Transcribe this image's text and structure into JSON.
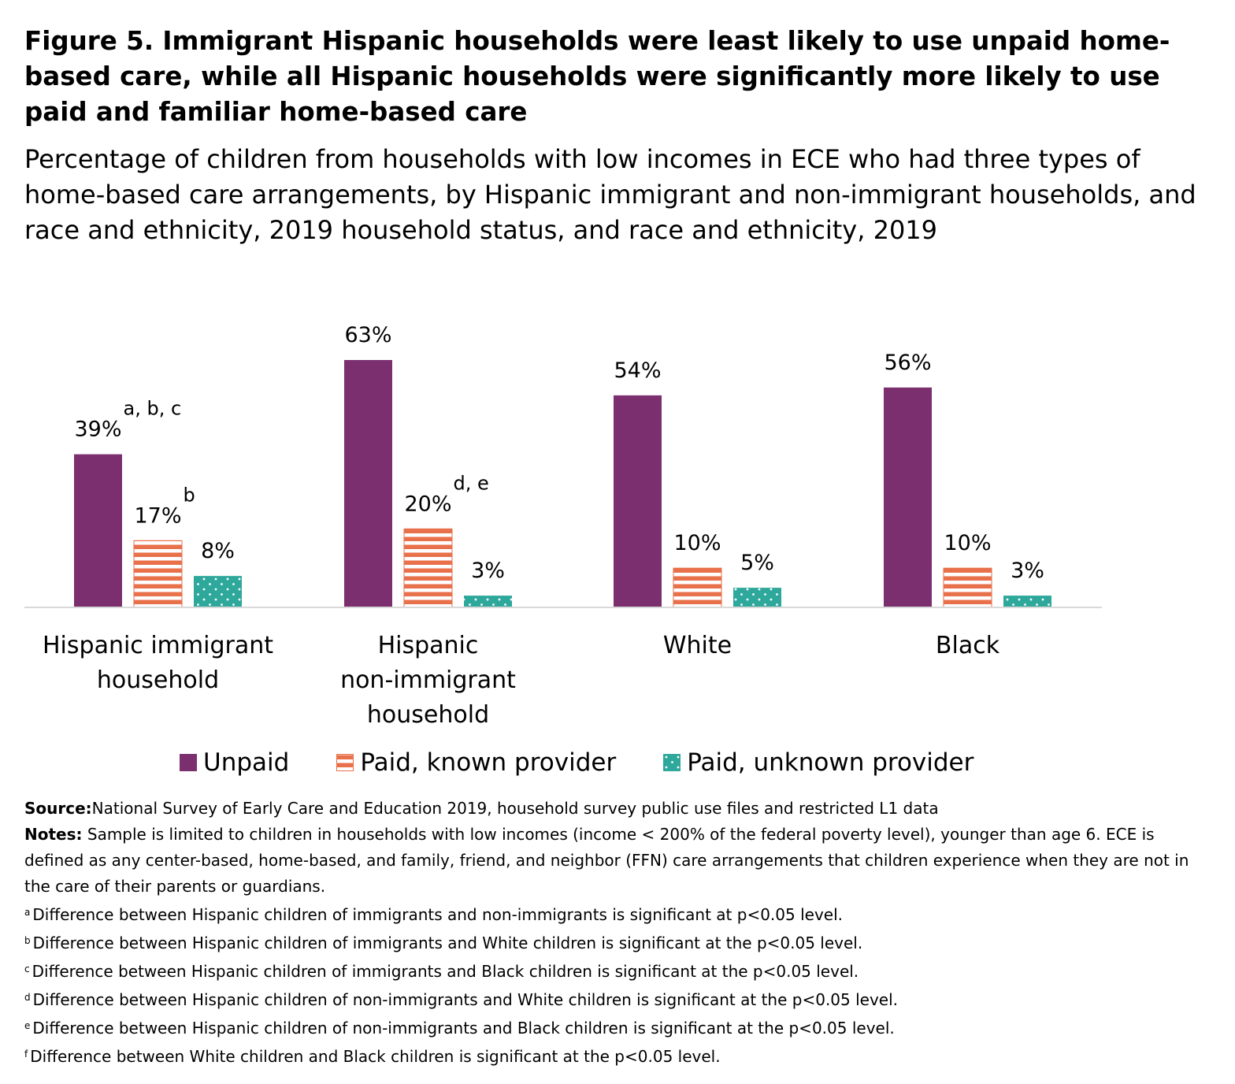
{
  "title": "Figure 5. Immigrant Hispanic households were least likely to use unpaid home-based care, while all Hispanic households were significantly more likely to use paid and familiar home-based care",
  "subtitle": "Percentage of children from households with low incomes in ECE who had three types of home-based care arrangements, by Hispanic immigrant and non-immigrant households, and race and ethnicity, 2019 household status, and race and ethnicity, 2019",
  "colors": {
    "unpaid": "#7b2f6e",
    "paid_known": "#e8704a",
    "paid_unknown": "#2fa89c",
    "axis": "#d9d9d9"
  },
  "chart_data": {
    "type": "bar",
    "categories": [
      [
        "Hispanic immigrant",
        "household"
      ],
      [
        "Hispanic",
        "non-immigrant",
        "household"
      ],
      [
        "White"
      ],
      [
        "Black"
      ]
    ],
    "series": [
      {
        "name": "Unpaid",
        "values": [
          39,
          63,
          54,
          56
        ],
        "labels": [
          "39%",
          "63%",
          "54%",
          "56%"
        ],
        "superscripts": [
          "a, b, c",
          "",
          "",
          ""
        ],
        "pattern": "solid"
      },
      {
        "name": "Paid, known provider",
        "values": [
          17,
          20,
          10,
          10
        ],
        "labels": [
          "17%",
          "20%",
          "10%",
          "10%"
        ],
        "superscripts": [
          "b",
          "d, e",
          "",
          ""
        ],
        "pattern": "stripes"
      },
      {
        "name": "Paid, unknown provider",
        "values": [
          8,
          3,
          5,
          3
        ],
        "labels": [
          "8%",
          "3%",
          "5%",
          "3%"
        ],
        "superscripts": [
          "",
          "",
          "",
          ""
        ],
        "pattern": "dots"
      }
    ],
    "ylim": [
      0,
      70
    ],
    "legend_position": "bottom",
    "grid": false
  },
  "footer": {
    "source_label": "Source:",
    "source_text": "National Survey of Early Care and Education 2019, household survey public use files and restricted L1 data",
    "notes_label": "Notes:",
    "notes_text": " Sample is limited to children in households with low incomes (income < 200% of the federal poverty level), younger than age 6. ECE is defined as any center-based, home-based, and family, friend, and neighbor (FFN) care arrangements that children experience when they are not in the care of their parents or guardians.",
    "footnotes": [
      {
        "mark": "a",
        "text": "Difference between Hispanic children of immigrants and non-immigrants is significant at p<0.05 level."
      },
      {
        "mark": "b",
        "text": "Difference between Hispanic children of immigrants and White children is significant at the p<0.05 level."
      },
      {
        "mark": "c",
        "text": "Difference between Hispanic children of immigrants and Black children is significant at the p<0.05 level."
      },
      {
        "mark": "d",
        "text": "Difference between Hispanic children of non-immigrants and White children is significant at the p<0.05 level."
      },
      {
        "mark": "e",
        "text": "Difference between Hispanic children of non-immigrants and Black children is significant at the p<0.05 level."
      },
      {
        "mark": "f",
        "text": "Difference between White children and Black children is significant at the p<0.05 level."
      }
    ]
  }
}
